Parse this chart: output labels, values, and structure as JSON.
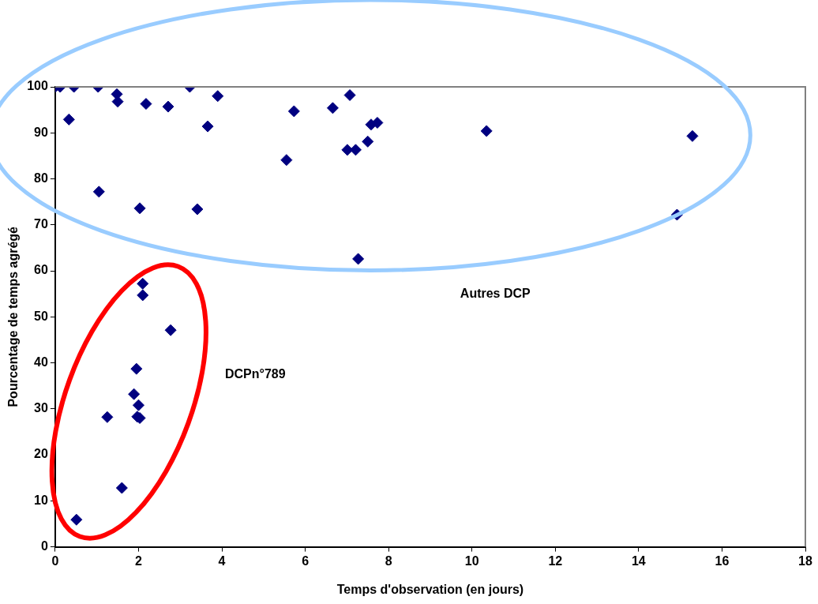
{
  "chart_data": {
    "type": "scatter",
    "xlabel": "Temps d'observation (en jours)",
    "ylabel": "Pourcentage de temps agrégé",
    "x": [
      0,
      0.12,
      0.45,
      1.03,
      3.23,
      0.33,
      1.48,
      1.5,
      2.18,
      2.71,
      3.9,
      3.66,
      5.73,
      5.55,
      1.05,
      2.03,
      3.41,
      6.66,
      7.07,
      7.58,
      7.73,
      7.5,
      7.01,
      7.21,
      10.35,
      15.29,
      14.92,
      7.27,
      2.1,
      2.1,
      2.77,
      1.95,
      1.89,
      2.0,
      2.03,
      1.97,
      1.25,
      1.6,
      0.51
    ],
    "values": [
      100,
      100,
      100,
      100,
      100,
      92.9,
      98.4,
      96.8,
      96.3,
      95.7,
      98,
      91.4,
      94.7,
      84.1,
      77.2,
      73.6,
      73.4,
      95.4,
      98.2,
      91.8,
      92.2,
      88.1,
      86.3,
      86.3,
      90.4,
      89.3,
      72.2,
      62.6,
      57.2,
      54.7,
      47.1,
      38.7,
      33.2,
      30.8,
      28,
      28.3,
      28.2,
      12.8,
      5.9
    ],
    "color": "#000080",
    "marker": "diamond",
    "xlim": [
      0,
      18
    ],
    "xticks": [
      0,
      2,
      4,
      6,
      8,
      10,
      12,
      14,
      16,
      18
    ],
    "ylim": [
      0,
      100
    ],
    "yticks": [
      0,
      10,
      20,
      30,
      40,
      50,
      60,
      70,
      80,
      90,
      100
    ],
    "grid": false,
    "legend": false,
    "annotations": [
      "Autres DCP",
      "DCPn°789"
    ]
  }
}
